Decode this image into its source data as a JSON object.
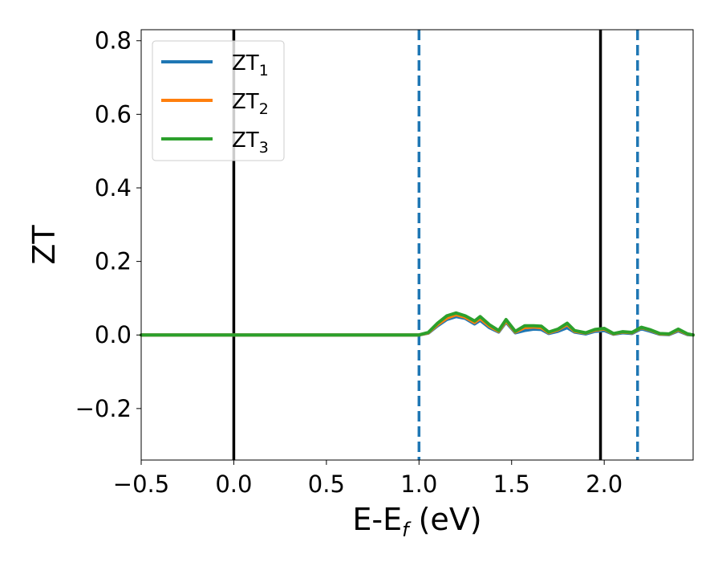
{
  "chart_data": {
    "type": "line",
    "xlabel": {
      "base": "E-E",
      "sub": "f",
      "tail": " (eV)"
    },
    "ylabel": "ZT",
    "xlim": [
      -0.5,
      2.48
    ],
    "ylim": [
      -0.34,
      0.83
    ],
    "xticks": [
      -0.5,
      0.0,
      0.5,
      1.0,
      1.5,
      2.0
    ],
    "xtick_labels": [
      "−0.5",
      "0.0",
      "0.5",
      "1.0",
      "1.5",
      "2.0"
    ],
    "yticks": [
      -0.2,
      0.0,
      0.2,
      0.4,
      0.6,
      0.8
    ],
    "ytick_labels": [
      "−0.2",
      "0.0",
      "0.2",
      "0.4",
      "0.6",
      "0.8"
    ],
    "grid": false,
    "legend_position": "top-left",
    "vlines": [
      {
        "x": 0.0,
        "style": "solid",
        "color": "#000000"
      },
      {
        "x": 1.98,
        "style": "solid",
        "color": "#000000"
      },
      {
        "x": 1.0,
        "style": "dashed",
        "color": "#1f77b4"
      },
      {
        "x": 2.18,
        "style": "dashed",
        "color": "#1f77b4"
      }
    ],
    "series": [
      {
        "name": "ZT",
        "sub": "1",
        "color": "#1f77b4",
        "x": [
          -0.5,
          1.0,
          1.05,
          1.1,
          1.15,
          1.2,
          1.25,
          1.3,
          1.33,
          1.38,
          1.43,
          1.47,
          1.52,
          1.57,
          1.62,
          1.66,
          1.7,
          1.75,
          1.8,
          1.84,
          1.9,
          1.95,
          2.0,
          2.05,
          2.1,
          2.15,
          2.2,
          2.25,
          2.3,
          2.35,
          2.4,
          2.45,
          2.48
        ],
        "y": [
          0.0,
          0.0,
          0.005,
          0.025,
          0.042,
          0.05,
          0.045,
          0.03,
          0.04,
          0.02,
          0.008,
          0.035,
          0.006,
          0.012,
          0.016,
          0.015,
          0.004,
          0.01,
          0.02,
          0.008,
          0.003,
          0.01,
          0.012,
          0.002,
          0.006,
          0.004,
          0.017,
          0.01,
          0.002,
          0.001,
          0.011,
          0.001,
          0.0
        ]
      },
      {
        "name": "ZT",
        "sub": "2",
        "color": "#ff7f0e",
        "x": [
          -0.5,
          1.0,
          1.05,
          1.1,
          1.15,
          1.2,
          1.25,
          1.3,
          1.33,
          1.38,
          1.43,
          1.47,
          1.52,
          1.57,
          1.62,
          1.66,
          1.7,
          1.75,
          1.8,
          1.84,
          1.9,
          1.95,
          2.0,
          2.05,
          2.1,
          2.15,
          2.2,
          2.25,
          2.3,
          2.35,
          2.4,
          2.45,
          2.48
        ],
        "y": [
          0.0,
          0.0,
          0.006,
          0.028,
          0.046,
          0.055,
          0.048,
          0.034,
          0.045,
          0.024,
          0.01,
          0.038,
          0.008,
          0.02,
          0.022,
          0.02,
          0.006,
          0.014,
          0.028,
          0.01,
          0.005,
          0.013,
          0.016,
          0.003,
          0.008,
          0.006,
          0.02,
          0.013,
          0.003,
          0.002,
          0.014,
          0.002,
          0.0
        ]
      },
      {
        "name": "ZT",
        "sub": "3",
        "color": "#2ca02c",
        "x": [
          -0.5,
          1.0,
          1.05,
          1.1,
          1.15,
          1.2,
          1.25,
          1.3,
          1.33,
          1.38,
          1.43,
          1.47,
          1.52,
          1.57,
          1.62,
          1.66,
          1.7,
          1.75,
          1.8,
          1.84,
          1.9,
          1.95,
          2.0,
          2.05,
          2.1,
          2.15,
          2.2,
          2.25,
          2.3,
          2.35,
          2.4,
          2.45,
          2.48
        ],
        "y": [
          0.0,
          0.0,
          0.007,
          0.032,
          0.052,
          0.06,
          0.052,
          0.038,
          0.05,
          0.028,
          0.012,
          0.042,
          0.01,
          0.025,
          0.025,
          0.024,
          0.008,
          0.016,
          0.032,
          0.012,
          0.006,
          0.015,
          0.018,
          0.004,
          0.009,
          0.007,
          0.021,
          0.014,
          0.004,
          0.003,
          0.016,
          0.003,
          0.0
        ]
      }
    ]
  }
}
